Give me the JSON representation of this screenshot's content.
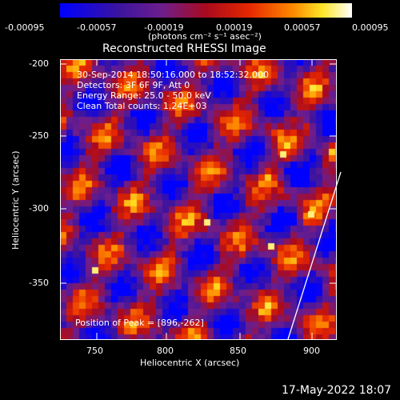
{
  "colorbar": {
    "ticks": [
      "-0.00095",
      "-0.00057",
      "-0.00019",
      "0.00019",
      "0.00057",
      "0.00095"
    ],
    "units": "(photons cm⁻² s⁻¹ asec⁻²)"
  },
  "image": {
    "title": "Reconstructed RHESSI Image",
    "info_lines": [
      "30-Sep-2014 18:50:16.000 to 18:52:32.000",
      "Detectors: 3F 6F 9F, Att 0",
      "Energy Range: 25.0 - 50.0 keV",
      "Clean     Total counts: 1.24E+03"
    ],
    "peak_label": "Position of Peak = [896,-262]"
  },
  "axes": {
    "xlabel": "Heliocentric X (arcsec)",
    "ylabel": "Heliocentric Y (arcsec)",
    "xticks": [
      750,
      800,
      850,
      900
    ],
    "yticks": [
      -200,
      -250,
      -300,
      -350
    ]
  },
  "footer": {
    "timestamp": "17-May-2022 18:07"
  },
  "colors": {
    "background": "#000000",
    "foreground": "#ffffff"
  }
}
